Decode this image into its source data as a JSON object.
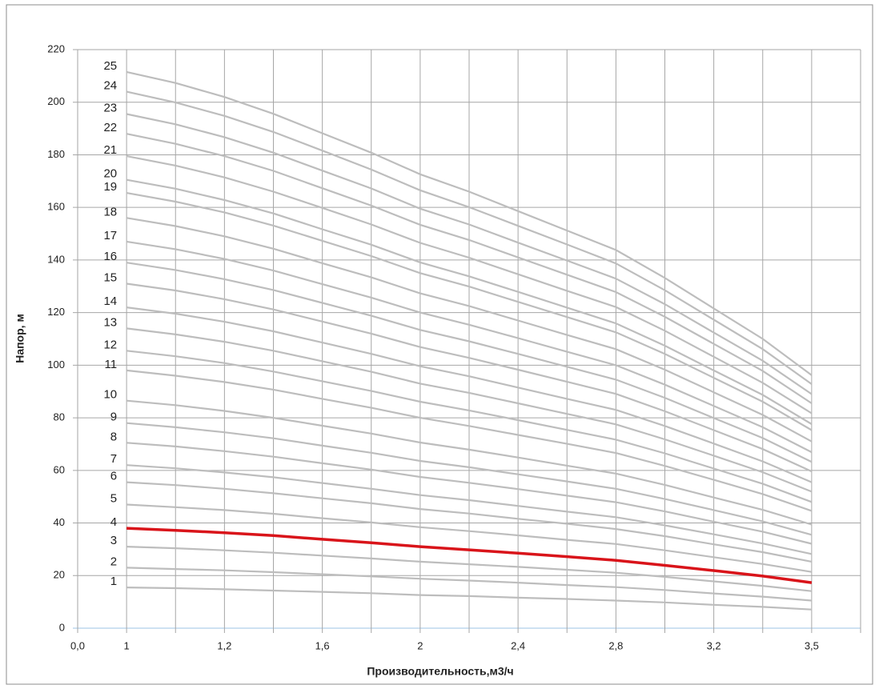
{
  "chart_data": {
    "type": "line",
    "ylabel": "Напор, м",
    "xlabel": "Производительность,м3/ч",
    "categories": [
      "0,0",
      "1",
      null,
      "1,2",
      null,
      "1,6",
      null,
      "2",
      null,
      "2,4",
      null,
      "2,8",
      null,
      "3,2",
      null,
      "3,5",
      null
    ],
    "ylim": [
      0,
      220
    ],
    "yticks": [
      0,
      20,
      40,
      60,
      80,
      100,
      120,
      140,
      160,
      180,
      200,
      220
    ],
    "grid": true,
    "series": [
      {
        "name": "1",
        "color": "#bdbdbd",
        "values": [
          null,
          15.5,
          15.2,
          14.8,
          14.3,
          13.8,
          13.3,
          12.6,
          12.2,
          11.6,
          11.1,
          10.5,
          9.8,
          8.9,
          8.1,
          7.1,
          null
        ]
      },
      {
        "name": "2",
        "color": "#bdbdbd",
        "values": [
          null,
          23,
          22.5,
          22,
          21.3,
          20.5,
          19.7,
          18.8,
          18.1,
          17.3,
          16.4,
          15.6,
          14.5,
          13.2,
          12,
          10.5,
          null
        ]
      },
      {
        "name": "3",
        "color": "#bdbdbd",
        "values": [
          null,
          31,
          30.4,
          29.6,
          28.7,
          27.6,
          26.5,
          25.3,
          24.3,
          23.3,
          22.2,
          21.1,
          19.5,
          17.8,
          16.1,
          14.1,
          null
        ]
      },
      {
        "name": "4",
        "color": "#d9141a",
        "values": [
          null,
          38,
          37.2,
          36.3,
          35.2,
          33.8,
          32.5,
          31,
          29.8,
          28.5,
          27.2,
          25.8,
          23.9,
          21.9,
          19.8,
          17.3,
          null
        ]
      },
      {
        "name": "5",
        "color": "#bdbdbd",
        "values": [
          null,
          47,
          46,
          44.9,
          43.5,
          41.8,
          40.2,
          38.4,
          36.9,
          35.3,
          33.6,
          32,
          29.6,
          27,
          24.4,
          21.4,
          null
        ]
      },
      {
        "name": "6",
        "color": "#bdbdbd",
        "values": [
          null,
          55.5,
          54.4,
          53,
          51.3,
          49.4,
          47.5,
          45.3,
          43.6,
          41.6,
          39.7,
          37.7,
          35,
          31.9,
          28.9,
          25.3,
          null
        ]
      },
      {
        "name": "7",
        "color": "#bdbdbd",
        "values": [
          null,
          62,
          60.8,
          59.2,
          57.4,
          55.2,
          53,
          50.6,
          48.7,
          46.5,
          44.3,
          42.2,
          39.1,
          35.7,
          32.2,
          28.2,
          null
        ]
      },
      {
        "name": "8",
        "color": "#bdbdbd",
        "values": [
          null,
          70.5,
          69.1,
          67.3,
          65.2,
          62.7,
          60.3,
          57.5,
          55.3,
          52.9,
          50.4,
          47.9,
          44.4,
          40.5,
          36.7,
          32.1,
          null
        ]
      },
      {
        "name": "9",
        "color": "#bdbdbd",
        "values": [
          null,
          78,
          76.4,
          74.5,
          72.2,
          69.4,
          66.7,
          63.6,
          61.2,
          58.5,
          55.8,
          53,
          49.1,
          44.9,
          40.6,
          35.5,
          null
        ]
      },
      {
        "name": "10",
        "color": "#bdbdbd",
        "values": [
          null,
          86.5,
          84.8,
          82.6,
          80,
          77,
          74,
          70.6,
          67.9,
          64.9,
          61.8,
          58.8,
          54.5,
          49.7,
          45,
          39.4,
          null
        ]
      },
      {
        "name": "11",
        "color": "#bdbdbd",
        "values": [
          null,
          98,
          96,
          93.6,
          90.7,
          87.2,
          83.8,
          80,
          76.9,
          73.5,
          70.1,
          66.6,
          61.7,
          56.4,
          51,
          44.6,
          null
        ]
      },
      {
        "name": "12",
        "color": "#bdbdbd",
        "values": [
          null,
          105.5,
          103.4,
          100.8,
          97.6,
          93.9,
          90.2,
          86.1,
          82.8,
          79.1,
          75.4,
          71.7,
          66.5,
          60.7,
          54.9,
          48,
          null
        ]
      },
      {
        "name": "13",
        "color": "#bdbdbd",
        "values": [
          null,
          114,
          111.7,
          108.9,
          105.5,
          101.5,
          97.5,
          93,
          89.5,
          85.5,
          81.5,
          77.5,
          71.8,
          65.6,
          59.3,
          51.9,
          null
        ]
      },
      {
        "name": "14",
        "color": "#bdbdbd",
        "values": [
          null,
          122,
          119.6,
          116.5,
          112.9,
          108.6,
          104.3,
          99.6,
          95.8,
          91.5,
          87.2,
          83,
          76.9,
          70.2,
          63.4,
          55.5,
          null
        ]
      },
      {
        "name": "15",
        "color": "#bdbdbd",
        "values": [
          null,
          131,
          128.4,
          125.1,
          121.2,
          116.6,
          112,
          106.9,
          102.8,
          98.3,
          93.7,
          89.1,
          82.5,
          75.3,
          68.1,
          59.6,
          null
        ]
      },
      {
        "name": "16",
        "color": "#bdbdbd",
        "values": [
          null,
          139,
          136.2,
          132.7,
          128.6,
          123.7,
          118.8,
          113.4,
          109.1,
          104.3,
          99.4,
          94.5,
          87.6,
          79.9,
          72.3,
          63.2,
          null
        ]
      },
      {
        "name": "17",
        "color": "#bdbdbd",
        "values": [
          null,
          147,
          144.1,
          140.4,
          136,
          130.8,
          125.7,
          120,
          115.4,
          110.3,
          105.1,
          100,
          92.6,
          84.5,
          76.4,
          66.9,
          null
        ]
      },
      {
        "name": "18",
        "color": "#bdbdbd",
        "values": [
          null,
          156,
          152.9,
          149,
          144.3,
          138.8,
          133.4,
          127.3,
          122.5,
          117,
          111.5,
          106.1,
          98.3,
          89.7,
          81.1,
          71,
          null
        ]
      },
      {
        "name": "19",
        "color": "#bdbdbd",
        "values": [
          null,
          165.5,
          162.2,
          158.1,
          153.1,
          147.3,
          141.5,
          135,
          129.9,
          124.1,
          118.3,
          112.5,
          104.3,
          95.2,
          86.1,
          75.3,
          null
        ]
      },
      {
        "name": "20",
        "color": "#bdbdbd",
        "values": [
          null,
          170.5,
          167.1,
          162.8,
          157.7,
          151.7,
          145.8,
          139.1,
          133.8,
          127.9,
          121.9,
          115.9,
          107.4,
          98,
          88.7,
          77.6,
          null
        ]
      },
      {
        "name": "21",
        "color": "#bdbdbd",
        "values": [
          null,
          179.5,
          175.9,
          171.4,
          166,
          159.8,
          153.5,
          146.5,
          140.9,
          134.6,
          128.3,
          122.1,
          113.1,
          103.2,
          93.3,
          81.7,
          null
        ]
      },
      {
        "name": "22",
        "color": "#bdbdbd",
        "values": [
          null,
          188,
          184.2,
          179.5,
          173.9,
          167.3,
          160.7,
          153.4,
          147.6,
          141,
          134.4,
          127.8,
          118.4,
          108.1,
          97.8,
          85.5,
          null
        ]
      },
      {
        "name": "23",
        "color": "#bdbdbd",
        "values": [
          null,
          195.5,
          191.6,
          186.7,
          180.8,
          174,
          167.2,
          159.5,
          153.5,
          146.6,
          139.8,
          132.9,
          123.2,
          112.4,
          101.7,
          89,
          null
        ]
      },
      {
        "name": "24",
        "color": "#bdbdbd",
        "values": [
          null,
          204,
          199.9,
          194.8,
          188.7,
          181.6,
          174.4,
          166.5,
          160.1,
          153,
          145.9,
          138.7,
          128.5,
          117.3,
          106.1,
          92.8,
          null
        ]
      },
      {
        "name": "25",
        "color": "#bdbdbd",
        "values": [
          null,
          211.5,
          207.3,
          202,
          195.6,
          188.2,
          180.8,
          172.6,
          166,
          158.6,
          151.2,
          143.8,
          133.2,
          121.6,
          110,
          96.2,
          null
        ]
      }
    ]
  }
}
